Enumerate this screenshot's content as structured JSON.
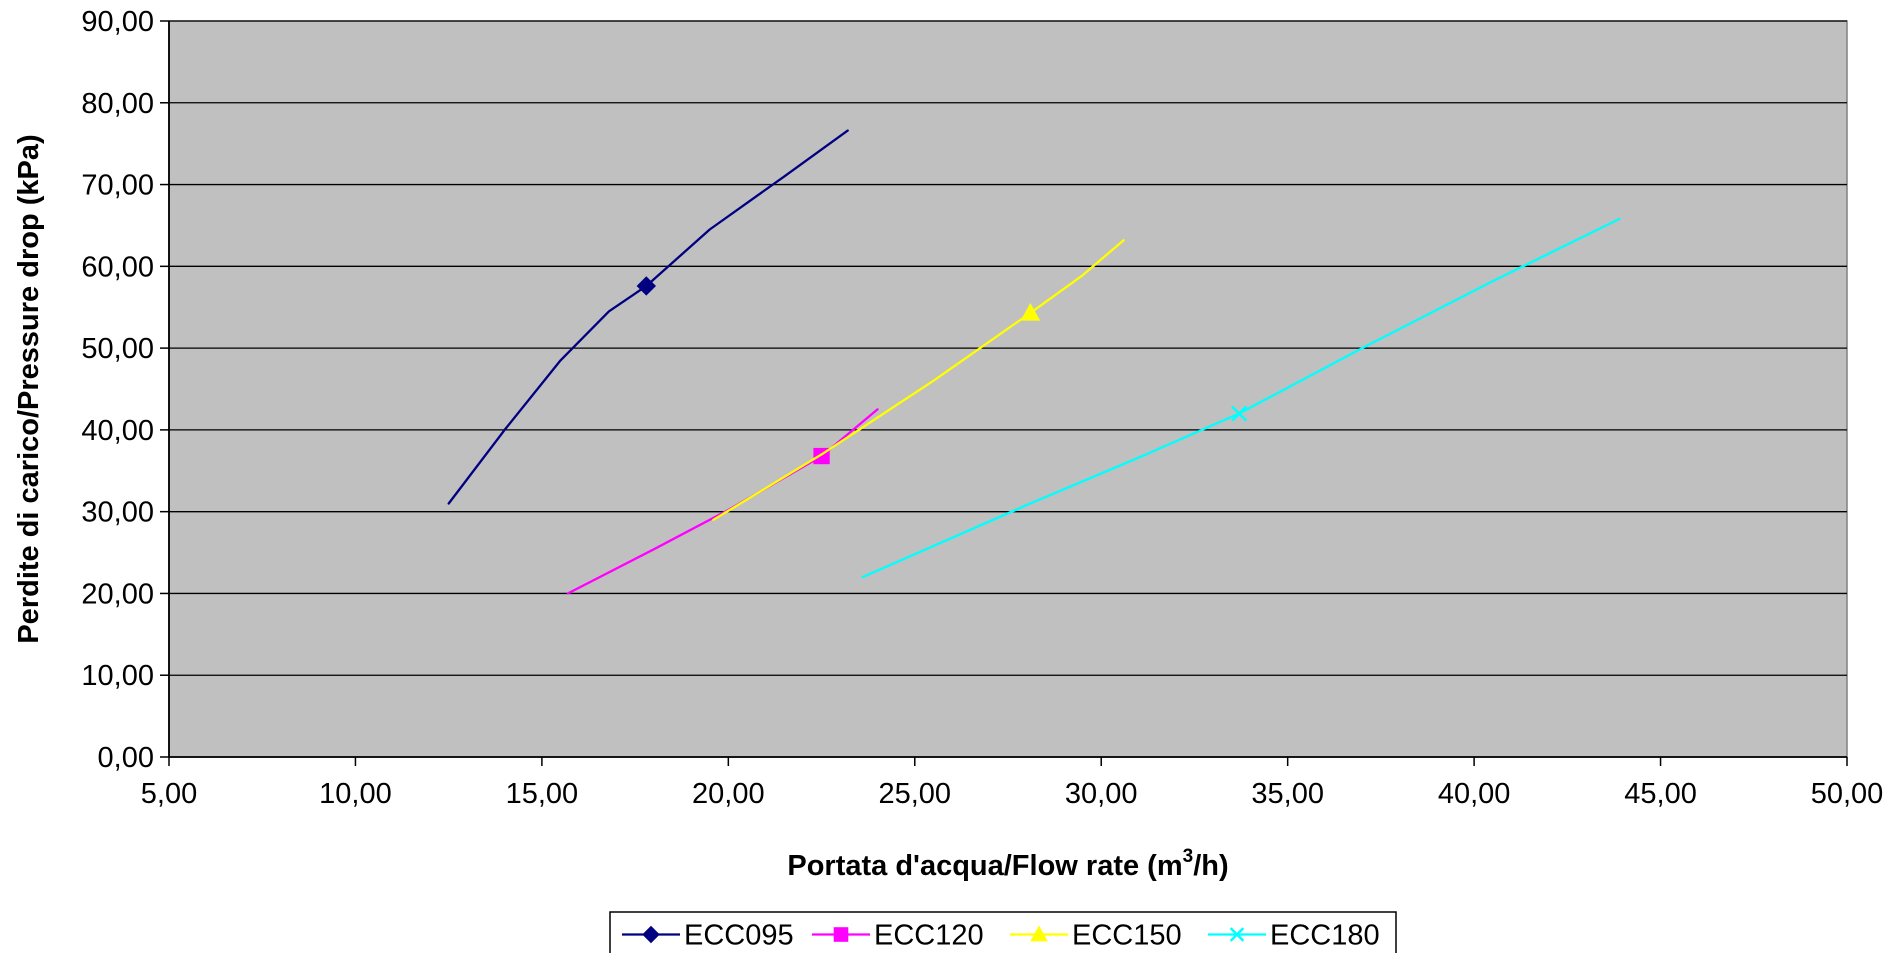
{
  "chart_data": {
    "type": "line",
    "title": "",
    "xlabel": "Portata d'acqua/Flow rate (m",
    "xlabel_sup": "3",
    "xlabel_suffix": "/h)",
    "ylabel": "Perdite di carico/Pressure drop (kPa)",
    "xlim": [
      5,
      50
    ],
    "ylim": [
      0,
      90
    ],
    "x_ticks": [
      5,
      10,
      15,
      20,
      25,
      30,
      35,
      40,
      45,
      50
    ],
    "y_ticks": [
      0,
      10,
      20,
      30,
      40,
      50,
      60,
      70,
      80,
      90
    ],
    "x_tick_labels": [
      "5,00",
      "10,00",
      "15,00",
      "20,00",
      "25,00",
      "30,00",
      "35,00",
      "40,00",
      "45,00",
      "50,00"
    ],
    "y_tick_labels": [
      "0,00",
      "10,00",
      "20,00",
      "30,00",
      "40,00",
      "50,00",
      "60,00",
      "70,00",
      "80,00",
      "90,00"
    ],
    "grid": "horizontal",
    "plot_background": "#C0C0C0",
    "legend_position": "bottom",
    "series": [
      {
        "name": "ECC095",
        "color": "#000080",
        "marker": "diamond",
        "x": [
          12.5,
          14.0,
          15.5,
          16.8,
          17.8,
          19.5,
          21.5,
          23.2
        ],
        "y": [
          31.0,
          40.0,
          48.5,
          54.5,
          57.6,
          64.5,
          71.0,
          76.6
        ],
        "marker_points": [
          [
            17.8,
            57.6
          ]
        ]
      },
      {
        "name": "ECC120",
        "color": "#FF00FF",
        "marker": "square",
        "x": [
          15.7,
          18.0,
          20.0,
          22.5,
          24.0
        ],
        "y": [
          20.0,
          25.4,
          30.2,
          36.8,
          42.5
        ],
        "marker_points": [
          [
            22.5,
            36.8
          ]
        ]
      },
      {
        "name": "ECC150",
        "color": "#FFFF00",
        "marker": "triangle",
        "x": [
          19.6,
          22.5,
          25.5,
          28.1,
          29.5,
          30.6
        ],
        "y": [
          29.0,
          37.0,
          46.0,
          54.3,
          58.9,
          63.2
        ],
        "marker_points": [
          [
            28.1,
            54.3
          ]
        ]
      },
      {
        "name": "ECC180",
        "color": "#00FFFF",
        "marker": "x",
        "x": [
          23.6,
          28.0,
          31.0,
          33.7,
          37.0,
          40.5,
          43.9
        ],
        "y": [
          22.0,
          30.8,
          36.6,
          42.0,
          50.0,
          58.2,
          65.8
        ],
        "marker_points": [
          [
            33.7,
            42.0
          ]
        ]
      }
    ]
  }
}
